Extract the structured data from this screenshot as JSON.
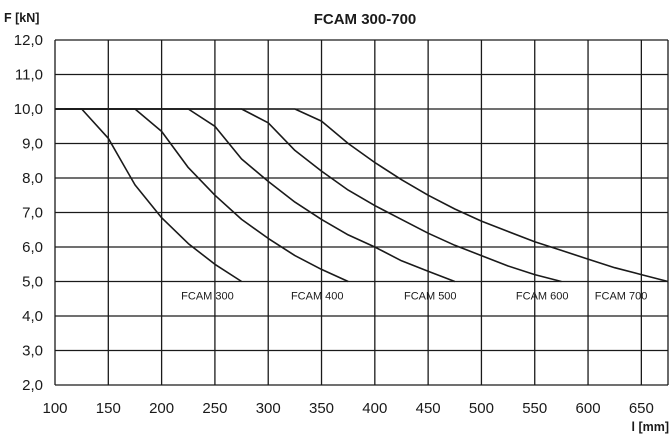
{
  "chart_data": {
    "type": "line",
    "title": "FCAM 300-700",
    "ylabel": "F [kN]",
    "xlabel": "l [mm]",
    "xlim": [
      100,
      675
    ],
    "ylim": [
      2.0,
      12.0
    ],
    "x_ticks": [
      "100",
      "150",
      "200",
      "250",
      "300",
      "350",
      "400",
      "450",
      "500",
      "550",
      "600",
      "650"
    ],
    "y_ticks": [
      "2,0",
      "3,0",
      "4,0",
      "5,0",
      "6,0",
      "7,0",
      "8,0",
      "9,0",
      "10,0",
      "11,0",
      "12,0"
    ],
    "x_tick_values": [
      100,
      150,
      200,
      250,
      300,
      350,
      400,
      450,
      500,
      550,
      600,
      650
    ],
    "y_tick_values": [
      2,
      3,
      4,
      5,
      6,
      7,
      8,
      9,
      10,
      11,
      12
    ],
    "grid": true,
    "series": [
      {
        "name": "FCAM 300",
        "points": [
          [
            100,
            10.0
          ],
          [
            125,
            10.0
          ],
          [
            150,
            9.15
          ],
          [
            175,
            7.8
          ],
          [
            200,
            6.85
          ],
          [
            225,
            6.1
          ],
          [
            250,
            5.5
          ],
          [
            275,
            5.0
          ]
        ]
      },
      {
        "name": "FCAM 400",
        "points": [
          [
            100,
            10.0
          ],
          [
            175,
            10.0
          ],
          [
            200,
            9.35
          ],
          [
            225,
            8.3
          ],
          [
            250,
            7.5
          ],
          [
            275,
            6.8
          ],
          [
            300,
            6.25
          ],
          [
            325,
            5.75
          ],
          [
            350,
            5.35
          ],
          [
            375,
            5.0
          ]
        ]
      },
      {
        "name": "FCAM 500",
        "points": [
          [
            100,
            10.0
          ],
          [
            225,
            10.0
          ],
          [
            250,
            9.5
          ],
          [
            275,
            8.55
          ],
          [
            300,
            7.9
          ],
          [
            325,
            7.3
          ],
          [
            350,
            6.8
          ],
          [
            375,
            6.35
          ],
          [
            400,
            6.0
          ],
          [
            425,
            5.6
          ],
          [
            450,
            5.3
          ],
          [
            475,
            5.0
          ]
        ]
      },
      {
        "name": "FCAM 600",
        "points": [
          [
            100,
            10.0
          ],
          [
            275,
            10.0
          ],
          [
            300,
            9.6
          ],
          [
            325,
            8.8
          ],
          [
            350,
            8.2
          ],
          [
            375,
            7.65
          ],
          [
            400,
            7.2
          ],
          [
            425,
            6.8
          ],
          [
            450,
            6.4
          ],
          [
            475,
            6.05
          ],
          [
            500,
            5.75
          ],
          [
            525,
            5.45
          ],
          [
            550,
            5.2
          ],
          [
            575,
            5.0
          ]
        ]
      },
      {
        "name": "FCAM 700",
        "points": [
          [
            100,
            10.0
          ],
          [
            325,
            10.0
          ],
          [
            350,
            9.65
          ],
          [
            375,
            9.0
          ],
          [
            400,
            8.45
          ],
          [
            425,
            7.95
          ],
          [
            450,
            7.5
          ],
          [
            475,
            7.1
          ],
          [
            500,
            6.75
          ],
          [
            525,
            6.45
          ],
          [
            550,
            6.15
          ],
          [
            575,
            5.9
          ],
          [
            600,
            5.65
          ],
          [
            625,
            5.4
          ],
          [
            650,
            5.2
          ],
          [
            675,
            5.0
          ]
        ]
      }
    ],
    "curve_labels": [
      {
        "text": "FCAM 300",
        "x": 243,
        "y": 4.6
      },
      {
        "text": "FCAM 400",
        "x": 346,
        "y": 4.6
      },
      {
        "text": "FCAM 500",
        "x": 452,
        "y": 4.6
      },
      {
        "text": "FCAM 600",
        "x": 557,
        "y": 4.6
      },
      {
        "text": "FCAM 700",
        "x": 631,
        "y": 4.6
      }
    ]
  }
}
